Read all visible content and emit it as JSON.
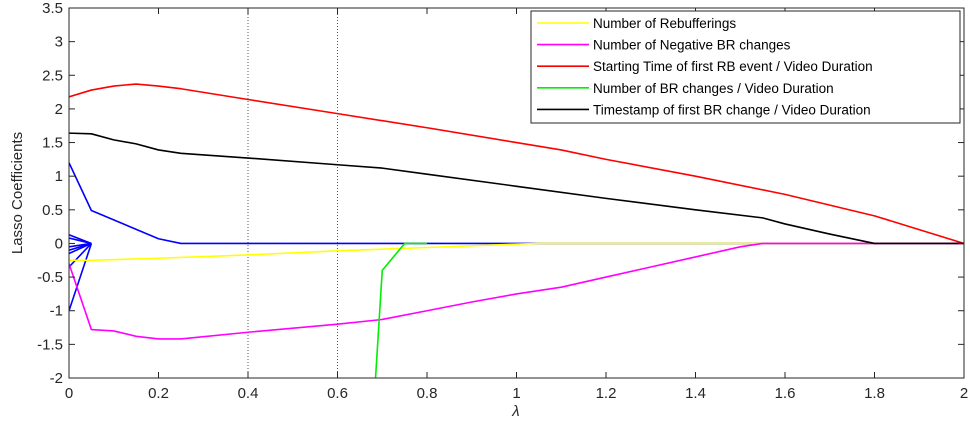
{
  "chart_data": {
    "type": "line",
    "title": "",
    "xlabel": "λ",
    "ylabel": "Lasso Coefficients",
    "xlim": [
      0,
      2
    ],
    "ylim": [
      -2,
      3.5
    ],
    "xticks": [
      0,
      0.2,
      0.4,
      0.6,
      0.8,
      1,
      1.2,
      1.4,
      1.6,
      1.8,
      2
    ],
    "xtick_labels": [
      "0",
      "0.2",
      "0.4",
      "0.6",
      "0.8",
      "1",
      "1.2",
      "1.4",
      "1.6",
      "1.8",
      "2"
    ],
    "yticks": [
      -2,
      -1.5,
      -1,
      -0.5,
      0,
      0.5,
      1,
      1.5,
      2,
      2.5,
      3,
      3.5
    ],
    "ytick_labels": [
      "-2",
      "-1.5",
      "-1",
      "-0.5",
      "0",
      "0.5",
      "1",
      "1.5",
      "2",
      "2.5",
      "3",
      "3.5"
    ],
    "grid": false,
    "reference_lines": [
      0.4,
      0.6
    ],
    "legend_position": "top-right",
    "series": [
      {
        "name": "Number of Rebufferings",
        "color": "#ffff00",
        "x": [
          0,
          0.05,
          0.2,
          0.4,
          0.6,
          0.8,
          1.0,
          1.05,
          2.0
        ],
        "y": [
          -0.25,
          -0.25,
          -0.22,
          -0.17,
          -0.11,
          -0.06,
          -0.01,
          0,
          0
        ]
      },
      {
        "name": "Number of Negative BR changes",
        "color": "#ff00ff",
        "x": [
          0,
          0.05,
          0.1,
          0.15,
          0.2,
          0.25,
          0.4,
          0.6,
          0.7,
          0.8,
          0.9,
          1.0,
          1.1,
          1.2,
          1.3,
          1.4,
          1.5,
          1.55,
          2.0
        ],
        "y": [
          -0.3,
          -1.28,
          -1.3,
          -1.38,
          -1.42,
          -1.42,
          -1.32,
          -1.2,
          -1.13,
          -1.0,
          -0.87,
          -0.75,
          -0.65,
          -0.5,
          -0.35,
          -0.2,
          -0.05,
          0,
          0
        ]
      },
      {
        "name": "Starting Time of first RB event / Video Duration",
        "color": "#ff0000",
        "x": [
          0,
          0.05,
          0.1,
          0.15,
          0.2,
          0.25,
          0.4,
          0.6,
          0.8,
          1.0,
          1.1,
          1.2,
          1.4,
          1.6,
          1.8,
          2.0
        ],
        "y": [
          2.18,
          2.28,
          2.34,
          2.37,
          2.34,
          2.3,
          2.14,
          1.93,
          1.72,
          1.5,
          1.39,
          1.25,
          1.0,
          0.73,
          0.41,
          0
        ]
      },
      {
        "name": "Number of BR changes / Video Duration",
        "color": "#00ee00",
        "x": [
          0.685,
          0.7,
          0.75,
          0.8
        ],
        "y": [
          -2.0,
          -0.4,
          0,
          0
        ]
      },
      {
        "name": "Timestamp of first BR change / Video Duration",
        "color": "#000000",
        "x": [
          0,
          0.05,
          0.1,
          0.15,
          0.2,
          0.25,
          0.4,
          0.6,
          0.7,
          0.8,
          1.0,
          1.2,
          1.4,
          1.55,
          1.6,
          1.7,
          1.8,
          2.0
        ],
        "y": [
          1.64,
          1.63,
          1.54,
          1.48,
          1.39,
          1.34,
          1.27,
          1.17,
          1.12,
          1.03,
          0.85,
          0.67,
          0.5,
          0.38,
          0.29,
          0.14,
          0,
          0
        ]
      }
    ],
    "other_series": [
      {
        "color": "#0000ff",
        "x": [
          0,
          0.05,
          0.2,
          0.25,
          2.0
        ],
        "y": [
          1.2,
          0.49,
          0.07,
          0,
          0
        ]
      },
      {
        "color": "#0000ff",
        "x": [
          0,
          0.05
        ],
        "y": [
          0.13,
          0
        ]
      },
      {
        "color": "#0000ff",
        "x": [
          0,
          0.05
        ],
        "y": [
          0.08,
          0
        ]
      },
      {
        "color": "#0000ff",
        "x": [
          0,
          0.05
        ],
        "y": [
          -0.05,
          0
        ]
      },
      {
        "color": "#0000ff",
        "x": [
          0,
          0.05
        ],
        "y": [
          -0.1,
          0
        ]
      },
      {
        "color": "#0000ff",
        "x": [
          0,
          0.05
        ],
        "y": [
          -0.15,
          0
        ]
      },
      {
        "color": "#0000ff",
        "x": [
          0,
          0.05
        ],
        "y": [
          -0.35,
          0
        ]
      },
      {
        "color": "#0000ff",
        "x": [
          0,
          0.05
        ],
        "y": [
          -1.0,
          0
        ]
      }
    ]
  }
}
